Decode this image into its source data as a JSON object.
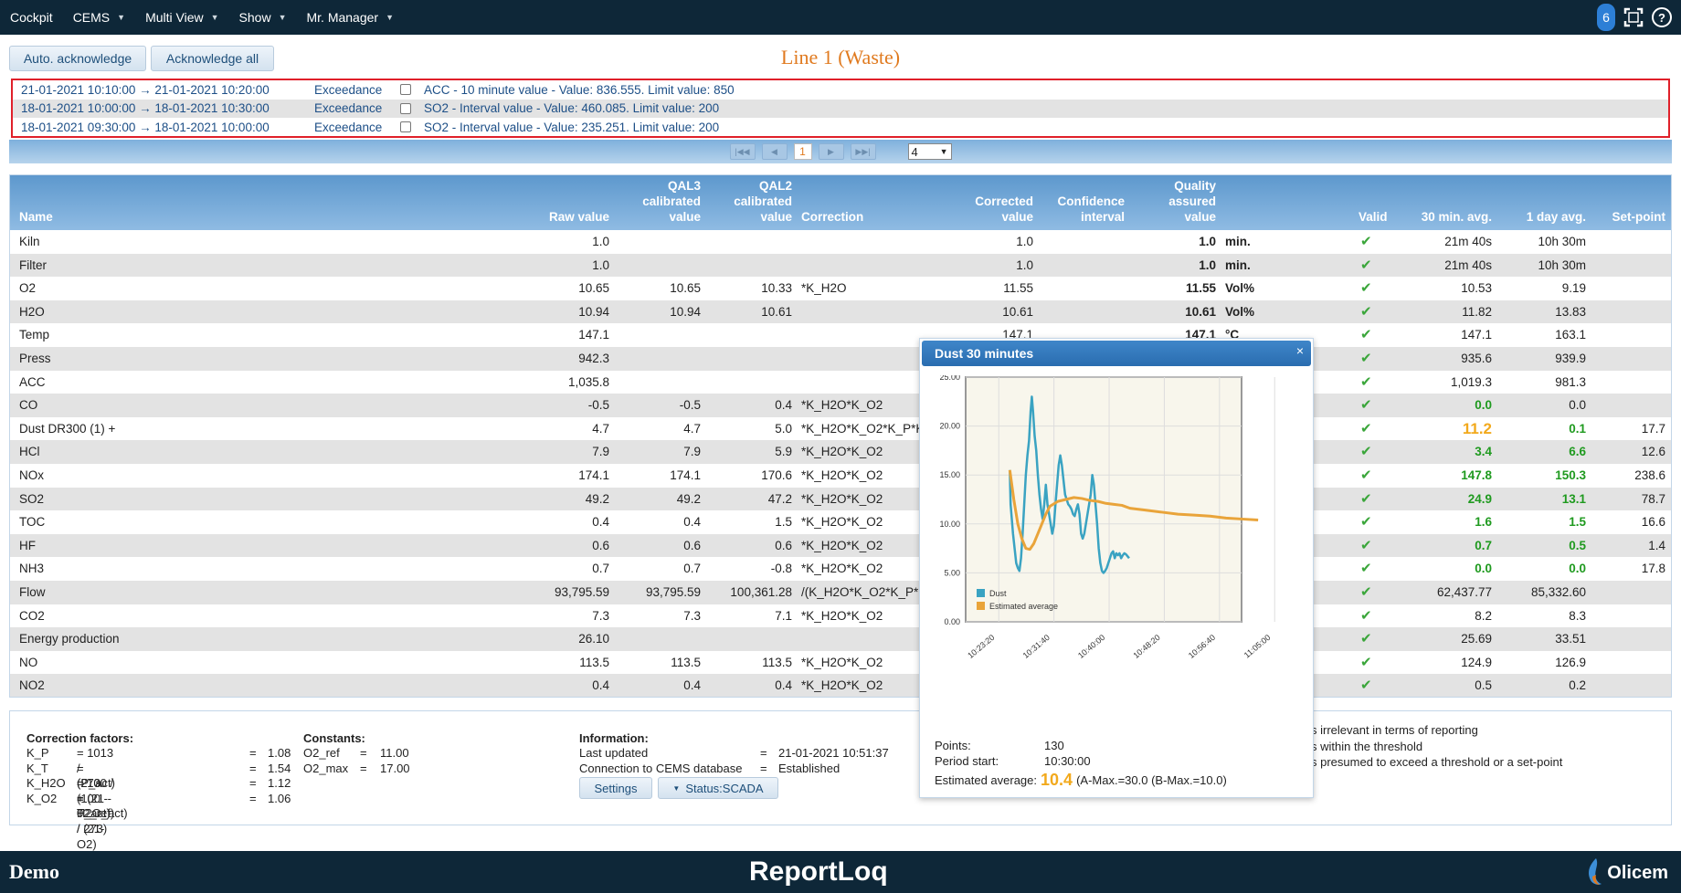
{
  "topbar": {
    "menus": [
      {
        "label": "Cockpit",
        "dropdown": false
      },
      {
        "label": "CEMS",
        "dropdown": true
      },
      {
        "label": "Multi View",
        "dropdown": true
      },
      {
        "label": "Show",
        "dropdown": true
      },
      {
        "label": "Mr. Manager",
        "dropdown": true
      }
    ],
    "notification_count": "6",
    "help_label": "?"
  },
  "toolbar": {
    "auto_ack": "Auto. acknowledge",
    "ack_all": "Acknowledge all"
  },
  "page_title": "Line 1 (Waste)",
  "alarms": [
    {
      "time": "21-01-2021 10:10:00 → 21-01-2021 10:20:00",
      "kind": "Exceedance",
      "message": "ACC - 10 minute value - Value: 836.555. Limit value: 850"
    },
    {
      "time": "18-01-2021 10:00:00 → 18-01-2021 10:30:00",
      "kind": "Exceedance",
      "message": "SO2 - Interval value - Value: 460.085. Limit value: 200"
    },
    {
      "time": "18-01-2021 09:30:00 → 18-01-2021 10:00:00",
      "kind": "Exceedance",
      "message": "SO2 - Interval value - Value: 235.251. Limit value: 200"
    }
  ],
  "pager": {
    "current": "1",
    "page_size": "4"
  },
  "table": {
    "headers": {
      "name": "Name",
      "raw": "Raw value",
      "qal3": [
        "QAL3",
        "calibrated",
        "value"
      ],
      "qal2": [
        "QAL2",
        "calibrated",
        "value"
      ],
      "correction": "Correction",
      "corrected": [
        "Corrected",
        "value"
      ],
      "confidence": [
        "Confidence",
        "interval"
      ],
      "qa": [
        "Quality",
        "assured",
        "value"
      ],
      "valid": "Valid",
      "avg30": "30 min. avg.",
      "avg1d": "1 day avg.",
      "setpoint": "Set-point"
    },
    "rows": [
      {
        "name": "Kiln",
        "raw": "1.0",
        "qal3": "",
        "qal2": "",
        "corr": "",
        "corrected": "1.0",
        "qa": "1.0",
        "unit": "min.",
        "avg30": "21m 40s",
        "avg1d": "10h 30m",
        "sp": "",
        "hl": ""
      },
      {
        "name": "Filter",
        "raw": "1.0",
        "qal3": "",
        "qal2": "",
        "corr": "",
        "corrected": "1.0",
        "qa": "1.0",
        "unit": "min.",
        "avg30": "21m 40s",
        "avg1d": "10h 30m",
        "sp": "",
        "hl": ""
      },
      {
        "name": "O2",
        "raw": "10.65",
        "qal3": "10.65",
        "qal2": "10.33",
        "corr": "*K_H2O",
        "corrected": "11.55",
        "qa": "11.55",
        "unit": "Vol%",
        "avg30": "10.53",
        "avg1d": "9.19",
        "sp": "",
        "hl": ""
      },
      {
        "name": "H2O",
        "raw": "10.94",
        "qal3": "10.94",
        "qal2": "10.61",
        "corr": "",
        "corrected": "10.61",
        "qa": "10.61",
        "unit": "Vol%",
        "avg30": "11.82",
        "avg1d": "13.83",
        "sp": "",
        "hl": ""
      },
      {
        "name": "Temp",
        "raw": "147.1",
        "qal3": "",
        "qal2": "",
        "corr": "",
        "corrected": "147.1",
        "qa": "147.1",
        "unit": "°C",
        "avg30": "147.1",
        "avg1d": "163.1",
        "sp": "",
        "hl": ""
      },
      {
        "name": "Press",
        "raw": "942.3",
        "qal3": "",
        "qal2": "",
        "corr": "",
        "corrected": "",
        "qa": "",
        "unit": "",
        "avg30": "935.6",
        "avg1d": "939.9",
        "sp": "",
        "hl": ""
      },
      {
        "name": "ACC",
        "raw": "1,035.8",
        "qal3": "",
        "qal2": "",
        "corr": "",
        "corrected": "",
        "qa": "",
        "unit": "",
        "avg30": "1,019.3",
        "avg1d": "981.3",
        "sp": "",
        "hl": ""
      },
      {
        "name": "CO",
        "raw": "-0.5",
        "qal3": "-0.5",
        "qal2": "0.4",
        "corr": "*K_H2O*K_O2",
        "corrected": "",
        "qa": "",
        "unit": "",
        "avg30": "0.0",
        "avg1d": "0.0",
        "sp": "",
        "hl": "g30"
      },
      {
        "name": "Dust DR300 (1) +",
        "raw": "4.7",
        "qal3": "4.7",
        "qal2": "5.0",
        "corr": "*K_H2O*K_O2*K_P*K",
        "corrected": "",
        "qa": "",
        "unit": "",
        "avg30": "11.2",
        "avg1d": "0.1",
        "sp": "17.7",
        "hl": "o30g1"
      },
      {
        "name": "HCl",
        "raw": "7.9",
        "qal3": "7.9",
        "qal2": "5.9",
        "corr": "*K_H2O*K_O2",
        "corrected": "",
        "qa": "",
        "unit": "",
        "avg30": "3.4",
        "avg1d": "6.6",
        "sp": "12.6",
        "hl": "g"
      },
      {
        "name": "NOx",
        "raw": "174.1",
        "qal3": "174.1",
        "qal2": "170.6",
        "corr": "*K_H2O*K_O2",
        "corrected": "",
        "qa": "",
        "unit": "",
        "avg30": "147.8",
        "avg1d": "150.3",
        "sp": "238.6",
        "hl": "g"
      },
      {
        "name": "SO2",
        "raw": "49.2",
        "qal3": "49.2",
        "qal2": "47.2",
        "corr": "*K_H2O*K_O2",
        "corrected": "",
        "qa": "",
        "unit": "",
        "avg30": "24.9",
        "avg1d": "13.1",
        "sp": "78.7",
        "hl": "g"
      },
      {
        "name": "TOC",
        "raw": "0.4",
        "qal3": "0.4",
        "qal2": "1.5",
        "corr": "*K_H2O*K_O2",
        "corrected": "",
        "qa": "",
        "unit": "",
        "avg30": "1.6",
        "avg1d": "1.5",
        "sp": "16.6",
        "hl": "g"
      },
      {
        "name": "HF",
        "raw": "0.6",
        "qal3": "0.6",
        "qal2": "0.6",
        "corr": "*K_H2O*K_O2",
        "corrected": "",
        "qa": "",
        "unit": "",
        "avg30": "0.7",
        "avg1d": "0.5",
        "sp": "1.4",
        "hl": "g"
      },
      {
        "name": "NH3",
        "raw": "0.7",
        "qal3": "0.7",
        "qal2": "-0.8",
        "corr": "*K_H2O*K_O2",
        "corrected": "",
        "qa": "",
        "unit": "",
        "avg30": "0.0",
        "avg1d": "0.0",
        "sp": "17.8",
        "hl": "g"
      },
      {
        "name": "Flow",
        "raw": "93,795.59",
        "qal3": "93,795.59",
        "qal2": "100,361.28",
        "corr": "/(K_H2O*K_O2*K_P*K",
        "corrected": "",
        "qa": "",
        "unit": "",
        "avg30": "62,437.77",
        "avg1d": "85,332.60",
        "sp": "",
        "hl": ""
      },
      {
        "name": "CO2",
        "raw": "7.3",
        "qal3": "7.3",
        "qal2": "7.1",
        "corr": "*K_H2O*K_O2",
        "corrected": "",
        "qa": "",
        "unit": "",
        "avg30": "8.2",
        "avg1d": "8.3",
        "sp": "",
        "hl": ""
      },
      {
        "name": "Energy production",
        "raw": "26.10",
        "qal3": "",
        "qal2": "",
        "corr": "",
        "corrected": "",
        "qa": "",
        "unit": "",
        "avg30": "25.69",
        "avg1d": "33.51",
        "sp": "",
        "hl": ""
      },
      {
        "name": "NO",
        "raw": "113.5",
        "qal3": "113.5",
        "qal2": "113.5",
        "corr": "*K_H2O*K_O2",
        "corrected": "",
        "qa": "",
        "unit": "",
        "avg30": "124.9",
        "avg1d": "126.9",
        "sp": "",
        "hl": ""
      },
      {
        "name": "NO2",
        "raw": "0.4",
        "qal3": "0.4",
        "qal2": "0.4",
        "corr": "*K_H2O*K_O2",
        "corrected": "",
        "qa": "",
        "unit": "",
        "avg30": "0.5",
        "avg1d": "0.2",
        "sp": "",
        "hl": ""
      }
    ]
  },
  "bottom": {
    "correction_title": "Correction factors:",
    "factors": [
      {
        "k": "K_P",
        "f": "= 1013 / (P_act)",
        "v": "1.08"
      },
      {
        "k": "K_T",
        "f": "= (273 + T_act) / 273)",
        "v": "1.54"
      },
      {
        "k": "K_H2O",
        "f": "= 100 / (100 - H2O_act)",
        "v": "1.12"
      },
      {
        "k": "K_O2",
        "f": "= (21 - 02_ref) / (21-O2)",
        "v": "1.06"
      }
    ],
    "constants_title": "Constants:",
    "constants": [
      {
        "k": "O2_ref",
        "v": "11.00"
      },
      {
        "k": "O2_max",
        "v": "17.00"
      }
    ],
    "info_title": "Information:",
    "info": [
      {
        "k": "Last updated",
        "v": "21-01-2021 10:51:37"
      },
      {
        "k": "Connection to CEMS database",
        "v": "Established"
      }
    ],
    "settings_btn": "Settings",
    "status_btn": "Status:SCADA",
    "legend": [
      "s irrelevant in terms of reporting",
      "s within the threshold",
      "s presumed to exceed a threshold or a set-point"
    ]
  },
  "popup": {
    "title": "Dust 30 minutes",
    "close": "×",
    "points_label": "Points:",
    "points": "130",
    "period_label": "Period start:",
    "period": "10:30:00",
    "est_label": "Estimated average:",
    "est_value": "10.4",
    "est_extra": "(A-Max.=30.0 (B-Max.=10.0)"
  },
  "chart_data": {
    "type": "line",
    "x_ticks": [
      "10:23:20",
      "10:31:40",
      "10:40:00",
      "10:48:20",
      "10:56:40",
      "11:05:00"
    ],
    "y_ticks": [
      "0.00",
      "5.00",
      "10.00",
      "15.00",
      "20.00",
      "25.00"
    ],
    "ylim": [
      0,
      25
    ],
    "legend_position": "bottom-left",
    "grid": true,
    "series": [
      {
        "name": "Dust",
        "color": "#3aa3c2",
        "x": [
          0,
          0.2,
          0.5,
          0.8,
          1.2,
          1.6,
          2.0,
          2.4,
          2.8,
          3.2,
          3.6,
          4.0,
          4.4,
          4.8,
          5.0,
          5.2,
          5.5,
          5.8,
          6.2,
          6.6,
          7.0,
          7.4,
          7.8,
          8.2,
          8.6,
          9.0,
          9.4,
          9.8,
          10.2,
          10.6,
          11.0,
          11.4,
          11.8,
          12.2,
          12.6,
          13.0,
          13.4,
          13.8,
          14.2,
          14.6,
          15.0,
          15.4,
          15.8,
          16.2,
          16.6,
          17.0,
          17.4,
          17.8,
          18.2,
          18.6,
          19.0,
          19.4,
          19.8,
          20.2,
          20.6,
          21.0,
          21.4,
          21.8,
          22.2,
          22.6,
          23.0,
          23.4,
          23.8,
          24.2,
          24.6,
          25.0,
          25.4,
          25.8,
          26.2,
          26.6,
          27.0,
          27.4,
          27.8,
          28.2,
          28.6,
          29.0,
          29.4,
          29.8
        ],
        "y": [
          15.5,
          12.0,
          10.5,
          9.0,
          7.5,
          6.0,
          5.5,
          5.2,
          6.5,
          9.0,
          12.0,
          15.0,
          17.0,
          18.5,
          20.0,
          21.5,
          23.0,
          21.5,
          19.0,
          17.5,
          15.0,
          13.0,
          11.5,
          10.5,
          12.0,
          14.0,
          12.0,
          11.0,
          10.0,
          9.0,
          9.8,
          12.0,
          14.0,
          16.0,
          17.0,
          16.0,
          14.5,
          13.0,
          12.5,
          12.0,
          11.8,
          11.5,
          11.0,
          10.8,
          11.5,
          12.0,
          11.0,
          9.0,
          8.5,
          9.0,
          10.0,
          11.0,
          12.0,
          13.0,
          15.0,
          14.0,
          12.0,
          10.0,
          7.5,
          6.0,
          5.2,
          5.0,
          5.2,
          5.5,
          6.0,
          6.5,
          7.0,
          7.2,
          6.5,
          7.0,
          6.8,
          7.0,
          6.5,
          6.8,
          7.0,
          6.9,
          6.7,
          6.5
        ]
      },
      {
        "name": "Estimated average",
        "color": "#e9a43a",
        "x": [
          0,
          1,
          2,
          3,
          4,
          5,
          6,
          7,
          8,
          9,
          10,
          12,
          14,
          16,
          18,
          20,
          22,
          24,
          26,
          28,
          30,
          34,
          38,
          42,
          46,
          50,
          54,
          58,
          62
        ],
        "y": [
          15.5,
          12.5,
          10.0,
          8.5,
          7.5,
          7.4,
          8.0,
          9.0,
          10.0,
          11.0,
          11.8,
          12.3,
          12.5,
          12.7,
          12.6,
          12.4,
          12.3,
          12.1,
          12.0,
          11.9,
          11.6,
          11.4,
          11.2,
          11.0,
          10.9,
          10.8,
          10.6,
          10.5,
          10.4
        ]
      }
    ]
  }
}
